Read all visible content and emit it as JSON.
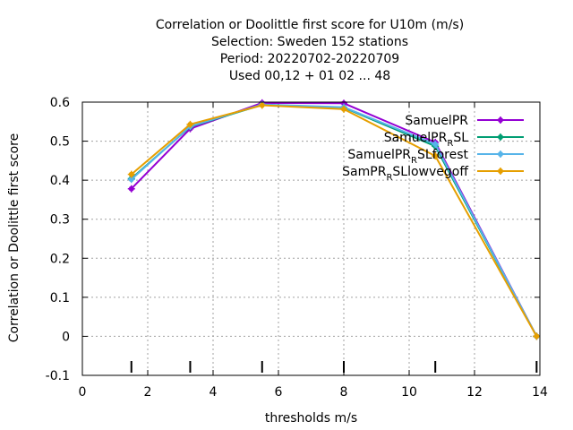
{
  "chart_data": {
    "type": "line",
    "title_lines": [
      "Correlation or Doolittle first score  for U10m (m/s)",
      "Selection: Sweden    152 stations",
      "Period: 20220702-20220709",
      "Used  00,12  + 01 02 ... 48"
    ],
    "xlabel": "thresholds m/s",
    "ylabel": "Correlation or Doolittle first score",
    "xlim": [
      0,
      14
    ],
    "ylim": [
      -0.1,
      0.6
    ],
    "xticks": [
      0,
      2,
      4,
      6,
      8,
      10,
      12,
      14
    ],
    "yticks": [
      -0.1,
      0,
      0.1,
      0.2,
      0.3,
      0.4,
      0.5,
      0.6
    ],
    "xtick_labels": [
      "0",
      "2",
      "4",
      "6",
      "8",
      "10",
      "12",
      "14"
    ],
    "ytick_labels": [
      "-0.1",
      "0",
      "0.1",
      "0.2",
      "0.3",
      "0.4",
      "0.5",
      "0.6"
    ],
    "grid": true,
    "legend_position": "top-right",
    "threshold_markers": [
      1.5,
      3.3,
      5.5,
      8.0,
      10.8,
      13.9
    ],
    "series": [
      {
        "legend_main": "SamuelPR",
        "legend_sub": "",
        "legend_tail": "",
        "color": "#9400d3",
        "x": [
          1.5,
          3.3,
          5.5,
          8.0,
          10.8,
          13.9
        ],
        "y": [
          0.378,
          0.532,
          0.598,
          0.597,
          0.497,
          0.0
        ]
      },
      {
        "legend_main": "SamuelPR",
        "legend_sub": "R",
        "legend_tail": "SL",
        "color": "#009e73",
        "x": [
          1.5,
          3.3,
          5.5,
          8.0,
          10.8,
          13.9
        ],
        "y": [
          0.404,
          0.537,
          0.593,
          0.586,
          0.487,
          0.0
        ]
      },
      {
        "legend_main": "SamuelPR",
        "legend_sub": "R",
        "legend_tail": "SLforest",
        "color": "#56b4e9",
        "x": [
          1.5,
          3.3,
          5.5,
          8.0,
          10.8,
          13.9
        ],
        "y": [
          0.402,
          0.538,
          0.594,
          0.587,
          0.492,
          0.0
        ]
      },
      {
        "legend_main": "SamPR",
        "legend_sub": "R",
        "legend_tail": "SLlowvegoff",
        "color": "#e69f00",
        "x": [
          1.5,
          3.3,
          5.5,
          8.0,
          10.8,
          13.9
        ],
        "y": [
          0.415,
          0.543,
          0.592,
          0.582,
          0.462,
          0.0
        ]
      }
    ]
  }
}
